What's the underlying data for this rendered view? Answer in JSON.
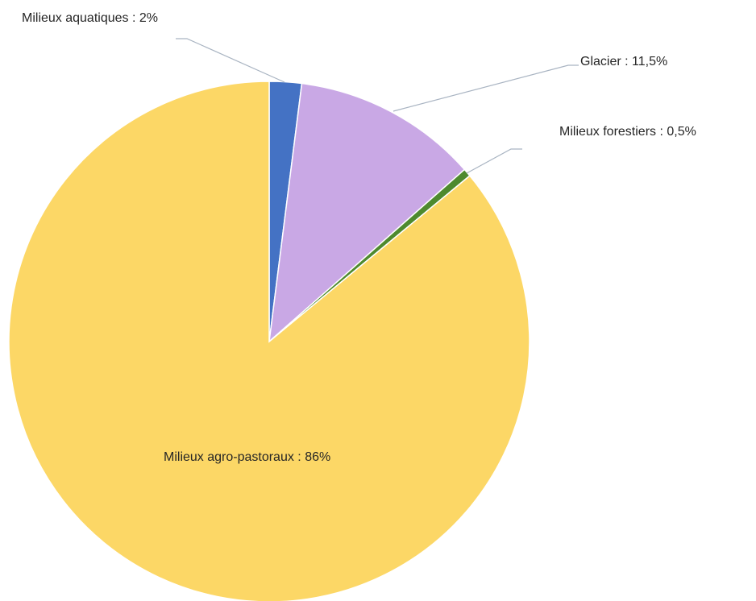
{
  "chart_data": {
    "type": "pie",
    "title": "",
    "slices": [
      {
        "label": "Milieux aquatiques",
        "value": 2,
        "display": "Milieux aquatiques : 2%",
        "color": "#4472C4"
      },
      {
        "label": "Glacier",
        "value": 11.5,
        "display": "Glacier : 11,5%",
        "color": "#C9A8E5"
      },
      {
        "label": "Milieux forestiers",
        "value": 0.5,
        "display": "Milieux forestiers : 0,5%",
        "color": "#4E8A2E"
      },
      {
        "label": "Milieux agro-pastoraux",
        "value": 86,
        "display": "Milieux agro-pastoraux : 86%",
        "color": "#FCD766"
      }
    ],
    "start_angle_deg": 0,
    "direction": "clockwise",
    "leader_line_color": "#A9B4C2",
    "legend": "none"
  }
}
